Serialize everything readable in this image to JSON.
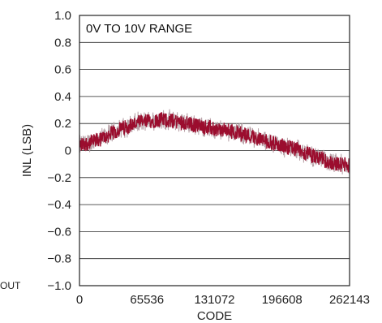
{
  "corner_label": "OUT",
  "chart_data": {
    "type": "line",
    "title": "",
    "xlabel": "CODE",
    "ylabel": "INL (LSB)",
    "xlim": [
      0,
      262143
    ],
    "ylim": [
      -1.0,
      1.0
    ],
    "x_ticks": [
      0,
      65536,
      131072,
      196608,
      262143
    ],
    "x_tick_labels": [
      "0",
      "65536",
      "131072",
      "196608",
      "262143"
    ],
    "y_ticks": [
      1.0,
      0.8,
      0.6,
      0.4,
      0.2,
      0,
      -0.2,
      -0.4,
      -0.6,
      -0.8,
      -1.0
    ],
    "y_tick_labels": [
      "1.0",
      "0.8",
      "0.6",
      "0.4",
      "0.2",
      "0",
      "−0.2",
      "−0.4",
      "−0.6",
      "−0.8",
      "−1.0"
    ],
    "grid": true,
    "annotation": "0V TO 10V RANGE",
    "series_color": "#9b0d2e",
    "noise_color": "#b8a2a8",
    "series": [
      {
        "x": [
          0,
          10000,
          20000,
          30000,
          40000,
          50000,
          60000,
          70000,
          80000,
          90000,
          100000,
          110000,
          120000,
          130000,
          140000,
          150000,
          160000,
          170000,
          180000,
          190000,
          200000,
          210000,
          220000,
          230000,
          240000,
          250000,
          262143
        ],
        "y": [
          0.04,
          0.06,
          0.08,
          0.12,
          0.16,
          0.19,
          0.21,
          0.22,
          0.23,
          0.22,
          0.21,
          0.19,
          0.18,
          0.16,
          0.15,
          0.14,
          0.12,
          0.1,
          0.07,
          0.05,
          0.03,
          0.01,
          -0.02,
          -0.05,
          -0.08,
          -0.1,
          -0.11
        ]
      }
    ]
  }
}
